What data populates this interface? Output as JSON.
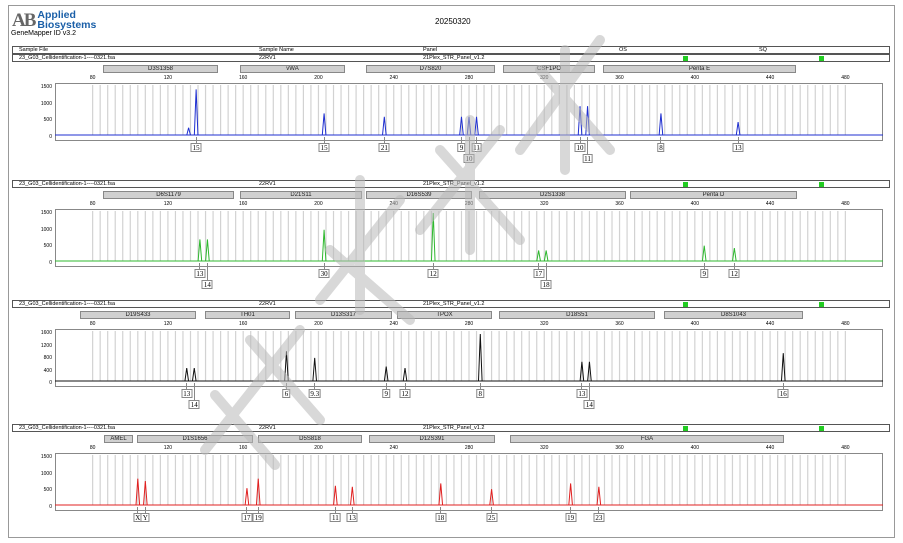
{
  "header": {
    "logo_mark": "AB",
    "logo_line1": "Applied",
    "logo_line2": "Biosystems",
    "software": "GeneMapper ID v3.2",
    "date": "20250320"
  },
  "table_header": {
    "sample_file": "Sample File",
    "sample_name": "Sample Name",
    "panel": "Panel",
    "os": "OS",
    "sq": "SQ"
  },
  "x_ticks": [
    "80",
    "120",
    "160",
    "200",
    "240",
    "280",
    "320",
    "360",
    "400",
    "440",
    "480"
  ],
  "panels": [
    {
      "file": "23_G03_Cellidentification-1----0321.fsa",
      "name": "22RV1",
      "panel": "21Plex_STR_Panel_v1.2",
      "color": "#1f2fd0",
      "y_ticks": [
        "1500",
        "1000",
        "500",
        "0"
      ],
      "markers": [
        {
          "label": "D3S1358",
          "start": 103,
          "end": 218
        },
        {
          "label": "vWA",
          "start": 240,
          "end": 345
        },
        {
          "label": "D7S820",
          "start": 366,
          "end": 495
        },
        {
          "label": "CSF1PO",
          "start": 503,
          "end": 595
        },
        {
          "label": "Penta E",
          "start": 603,
          "end": 796
        }
      ],
      "peaks": [
        {
          "bp": 131,
          "height": 0.15
        },
        {
          "bp": 135,
          "height": 0.95
        },
        {
          "bp": 203,
          "height": 0.45
        },
        {
          "bp": 235,
          "height": 0.38
        },
        {
          "bp": 276,
          "height": 0.38
        },
        {
          "bp": 280,
          "height": 0.38
        },
        {
          "bp": 284,
          "height": 0.38
        },
        {
          "bp": 339,
          "height": 0.6
        },
        {
          "bp": 343,
          "height": 0.6
        },
        {
          "bp": 382,
          "height": 0.45
        },
        {
          "bp": 423,
          "height": 0.27
        }
      ],
      "alleles": [
        {
          "label": "15",
          "bp": 135,
          "row": 0
        },
        {
          "label": "15",
          "bp": 203,
          "row": 0
        },
        {
          "label": "21",
          "bp": 235,
          "row": 0
        },
        {
          "label": "9",
          "bp": 276,
          "row": 0
        },
        {
          "label": "10",
          "bp": 280,
          "row": 1
        },
        {
          "label": "11",
          "bp": 284,
          "row": 0
        },
        {
          "label": "10",
          "bp": 339,
          "row": 0
        },
        {
          "label": "11",
          "bp": 343,
          "row": 1
        },
        {
          "label": "8",
          "bp": 382,
          "row": 0
        },
        {
          "label": "13",
          "bp": 423,
          "row": 0
        }
      ]
    },
    {
      "file": "23_G03_Cellidentification-1----0321.fsa",
      "name": "22RV1",
      "panel": "21Plex_STR_Panel_v1.2",
      "color": "#2fb82f",
      "y_ticks": [
        "1500",
        "1000",
        "500",
        "0"
      ],
      "markers": [
        {
          "label": "D6S1179",
          "start": 103,
          "end": 234
        },
        {
          "label": "D21S11",
          "start": 240,
          "end": 362
        },
        {
          "label": "D16S539",
          "start": 366,
          "end": 472
        },
        {
          "label": "D2S1338",
          "start": 479,
          "end": 626
        },
        {
          "label": "Penta D",
          "start": 630,
          "end": 797
        }
      ],
      "peaks": [
        {
          "bp": 137,
          "height": 0.45
        },
        {
          "bp": 141,
          "height": 0.45
        },
        {
          "bp": 203,
          "height": 0.65
        },
        {
          "bp": 261,
          "height": 1.0
        },
        {
          "bp": 317,
          "height": 0.22
        },
        {
          "bp": 321,
          "height": 0.22
        },
        {
          "bp": 405,
          "height": 0.32
        },
        {
          "bp": 421,
          "height": 0.27
        }
      ],
      "alleles": [
        {
          "label": "13",
          "bp": 137,
          "row": 0
        },
        {
          "label": "14",
          "bp": 141,
          "row": 1
        },
        {
          "label": "30",
          "bp": 203,
          "row": 0
        },
        {
          "label": "12",
          "bp": 261,
          "row": 0
        },
        {
          "label": "17",
          "bp": 317,
          "row": 0
        },
        {
          "label": "18",
          "bp": 321,
          "row": 1
        },
        {
          "label": "9",
          "bp": 405,
          "row": 0
        },
        {
          "label": "12",
          "bp": 421,
          "row": 0
        }
      ]
    },
    {
      "file": "23_G03_Cellidentification-1----0321.fsa",
      "name": "22RV1",
      "panel": "21Plex_STR_Panel_v1.2",
      "color": "#111111",
      "y_ticks": [
        "1600",
        "1200",
        "800",
        "400",
        "0"
      ],
      "markers": [
        {
          "label": "D19S433",
          "start": 80,
          "end": 196
        },
        {
          "label": "TH01",
          "start": 205,
          "end": 290
        },
        {
          "label": "D13S317",
          "start": 295,
          "end": 392
        },
        {
          "label": "TPOX",
          "start": 397,
          "end": 492
        },
        {
          "label": "D18S51",
          "start": 499,
          "end": 655
        },
        {
          "label": "D8S1043",
          "start": 664,
          "end": 803
        }
      ],
      "peaks": [
        {
          "bp": 130,
          "height": 0.27
        },
        {
          "bp": 134,
          "height": 0.27
        },
        {
          "bp": 183,
          "height": 0.62
        },
        {
          "bp": 198,
          "height": 0.48
        },
        {
          "bp": 236,
          "height": 0.3
        },
        {
          "bp": 246,
          "height": 0.27
        },
        {
          "bp": 286,
          "height": 0.98
        },
        {
          "bp": 340,
          "height": 0.4
        },
        {
          "bp": 344,
          "height": 0.4
        },
        {
          "bp": 447,
          "height": 0.58
        }
      ],
      "alleles": [
        {
          "label": "13",
          "bp": 130,
          "row": 0
        },
        {
          "label": "14",
          "bp": 134,
          "row": 1
        },
        {
          "label": "6",
          "bp": 183,
          "row": 0
        },
        {
          "label": "9.3",
          "bp": 198,
          "row": 0
        },
        {
          "label": "9",
          "bp": 236,
          "row": 0
        },
        {
          "label": "12",
          "bp": 246,
          "row": 0
        },
        {
          "label": "8",
          "bp": 286,
          "row": 0
        },
        {
          "label": "13",
          "bp": 340,
          "row": 0
        },
        {
          "label": "14",
          "bp": 344,
          "row": 1
        },
        {
          "label": "16",
          "bp": 447,
          "row": 0
        }
      ]
    },
    {
      "file": "23_G03_Cellidentification-1----0321.fsa",
      "name": "22RV1",
      "panel": "21Plex_STR_Panel_v1.2",
      "color": "#e02020",
      "y_ticks": [
        "1500",
        "1000",
        "500",
        "0"
      ],
      "markers": [
        {
          "label": "AMEL",
          "start": 104,
          "end": 133
        },
        {
          "label": "D1S1656",
          "start": 137,
          "end": 253
        },
        {
          "label": "D5S818",
          "start": 258,
          "end": 362
        },
        {
          "label": "D12S391",
          "start": 369,
          "end": 495
        },
        {
          "label": "FGA",
          "start": 510,
          "end": 784
        }
      ],
      "peaks": [
        {
          "bp": 104,
          "height": 0.55
        },
        {
          "bp": 108,
          "height": 0.5
        },
        {
          "bp": 162,
          "height": 0.35
        },
        {
          "bp": 168,
          "height": 0.55
        },
        {
          "bp": 209,
          "height": 0.4
        },
        {
          "bp": 218,
          "height": 0.38
        },
        {
          "bp": 265,
          "height": 0.45
        },
        {
          "bp": 292,
          "height": 0.33
        },
        {
          "bp": 334,
          "height": 0.45
        },
        {
          "bp": 349,
          "height": 0.38
        }
      ],
      "alleles": [
        {
          "label": "X",
          "bp": 104,
          "row": 0
        },
        {
          "label": "Y",
          "bp": 108,
          "row": 0
        },
        {
          "label": "17",
          "bp": 162,
          "row": 0
        },
        {
          "label": "19",
          "bp": 168,
          "row": 0
        },
        {
          "label": "11",
          "bp": 209,
          "row": 0
        },
        {
          "label": "13",
          "bp": 218,
          "row": 0
        },
        {
          "label": "18",
          "bp": 265,
          "row": 0
        },
        {
          "label": "25",
          "bp": 292,
          "row": 0
        },
        {
          "label": "19",
          "bp": 334,
          "row": 0
        },
        {
          "label": "23",
          "bp": 349,
          "row": 0
        }
      ]
    }
  ]
}
